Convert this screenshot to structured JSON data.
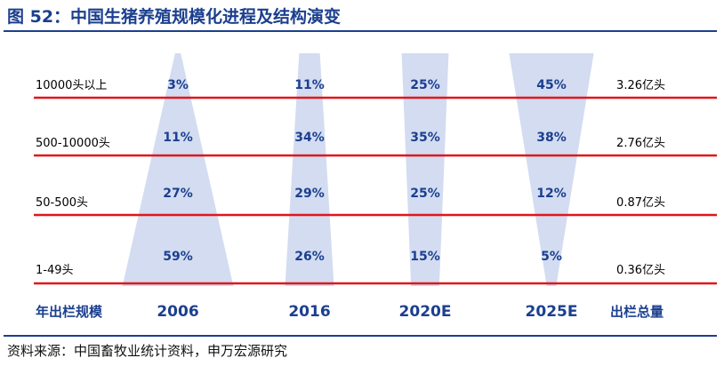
{
  "title": "图 52：中国生猪养殖规模化进程及结构演变",
  "source": "资料来源：中国畜牧业统计资料，申万宏源研究",
  "colors": {
    "funnel": "#d3dcf1",
    "line": "#e3151a",
    "text": "#1b3f8f",
    "label": "#000000"
  },
  "chart_data": {
    "type": "bar",
    "row_header": "年出栏规模",
    "total_header": "出栏总量",
    "rows": [
      "10000头以上",
      "500-10000头",
      "50-500头",
      "1-49头"
    ],
    "totals": [
      "3.26亿头",
      "2.76亿头",
      "0.87亿头",
      "0.36亿头"
    ],
    "unit": "%",
    "series": [
      {
        "name": "2006",
        "values": [
          3,
          11,
          27,
          59
        ]
      },
      {
        "name": "2016",
        "values": [
          11,
          34,
          29,
          26
        ]
      },
      {
        "name": "2020E",
        "values": [
          25,
          35,
          25,
          15
        ]
      },
      {
        "name": "2025E",
        "values": [
          45,
          38,
          12,
          5
        ]
      }
    ]
  }
}
